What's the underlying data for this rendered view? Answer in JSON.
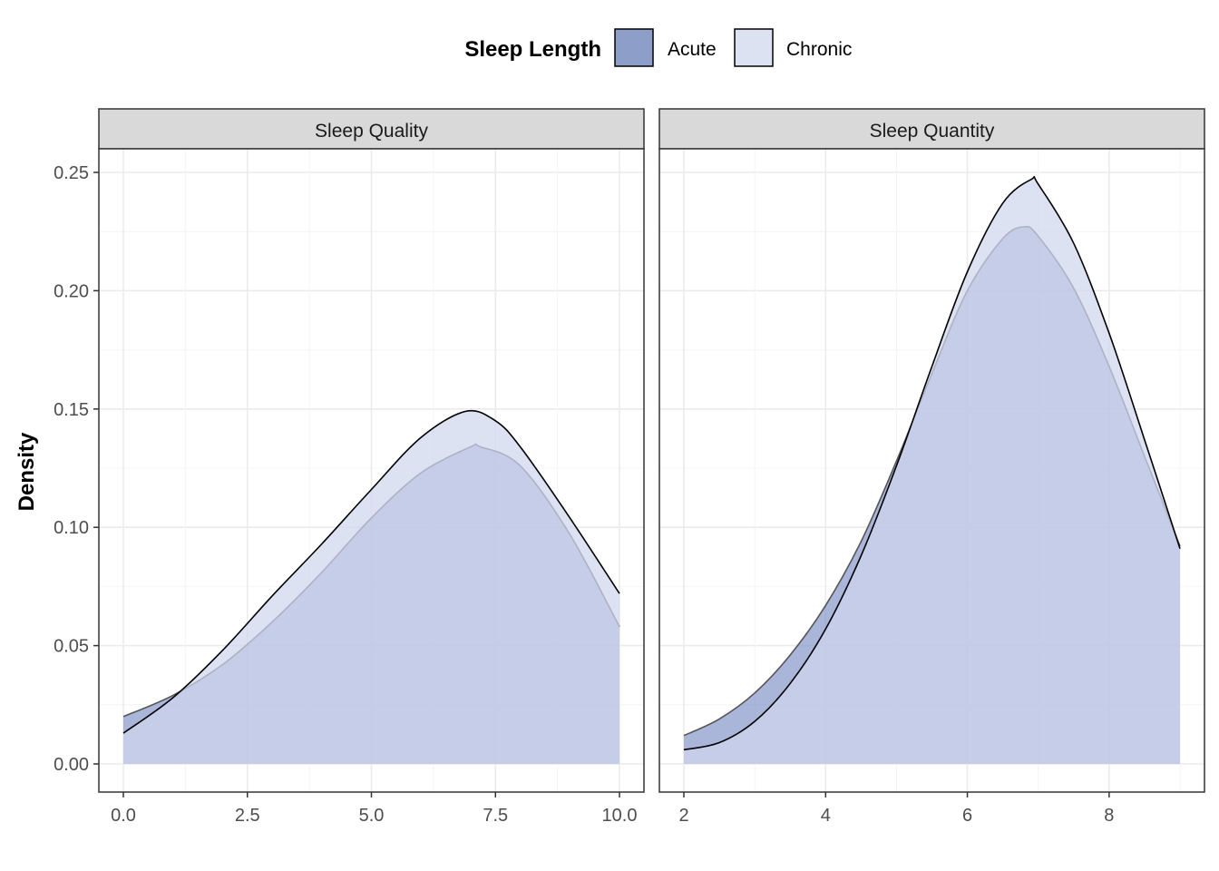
{
  "legend": {
    "title": "Sleep Length",
    "items": [
      {
        "label": "Acute",
        "color": "#8d9ec9"
      },
      {
        "label": "Chronic",
        "color": "#dde2f3"
      }
    ]
  },
  "y_axis_title": "Density",
  "chart_data": [
    {
      "type": "area",
      "panel_title": "Sleep Quality",
      "xlim": [
        0,
        10
      ],
      "ylim": [
        0,
        0.25
      ],
      "x_ticks": [
        "0.0",
        "2.5",
        "5.0",
        "7.5",
        "10.0"
      ],
      "x_tick_values": [
        0,
        2.5,
        5,
        7.5,
        10
      ],
      "y_ticks": [
        "0.00",
        "0.05",
        "0.10",
        "0.15",
        "0.20",
        "0.25"
      ],
      "y_tick_values": [
        0,
        0.05,
        0.1,
        0.15,
        0.2,
        0.25
      ],
      "grid": true,
      "series": [
        {
          "name": "Acute",
          "x": [
            0,
            1,
            2,
            3,
            4,
            5,
            6,
            7,
            7.2,
            8,
            9,
            10
          ],
          "values": [
            0.02,
            0.029,
            0.042,
            0.06,
            0.081,
            0.104,
            0.123,
            0.134,
            0.134,
            0.126,
            0.097,
            0.058
          ]
        },
        {
          "name": "Chronic",
          "x": [
            0,
            1,
            2,
            3,
            4,
            5,
            6,
            6.9,
            7.5,
            8,
            9,
            10
          ],
          "values": [
            0.013,
            0.028,
            0.048,
            0.071,
            0.093,
            0.116,
            0.138,
            0.149,
            0.145,
            0.134,
            0.104,
            0.072
          ]
        }
      ]
    },
    {
      "type": "area",
      "panel_title": "Sleep Quantity",
      "xlim": [
        2,
        9
      ],
      "ylim": [
        0,
        0.25
      ],
      "x_ticks": [
        "2",
        "4",
        "6",
        "8"
      ],
      "x_tick_values": [
        2,
        4,
        6,
        8
      ],
      "y_ticks": [
        "0.00",
        "0.05",
        "0.10",
        "0.15",
        "0.20",
        "0.25"
      ],
      "y_tick_values": [
        0,
        0.05,
        0.1,
        0.15,
        0.2,
        0.25
      ],
      "grid": true,
      "series": [
        {
          "name": "Acute",
          "x": [
            2,
            2.5,
            3,
            3.5,
            4,
            4.5,
            5,
            5.5,
            6,
            6.5,
            6.8,
            7,
            7.5,
            8,
            8.5,
            9
          ],
          "values": [
            0.012,
            0.019,
            0.03,
            0.046,
            0.067,
            0.094,
            0.128,
            0.165,
            0.2,
            0.222,
            0.227,
            0.223,
            0.201,
            0.168,
            0.13,
            0.092
          ]
        },
        {
          "name": "Chronic",
          "x": [
            2,
            2.5,
            3,
            3.5,
            4,
            4.5,
            5,
            5.5,
            6,
            6.5,
            6.9,
            7,
            7.5,
            8,
            8.5,
            9
          ],
          "values": [
            0.006,
            0.009,
            0.018,
            0.034,
            0.057,
            0.088,
            0.126,
            0.168,
            0.208,
            0.237,
            0.247,
            0.245,
            0.22,
            0.182,
            0.137,
            0.091
          ]
        }
      ]
    }
  ]
}
